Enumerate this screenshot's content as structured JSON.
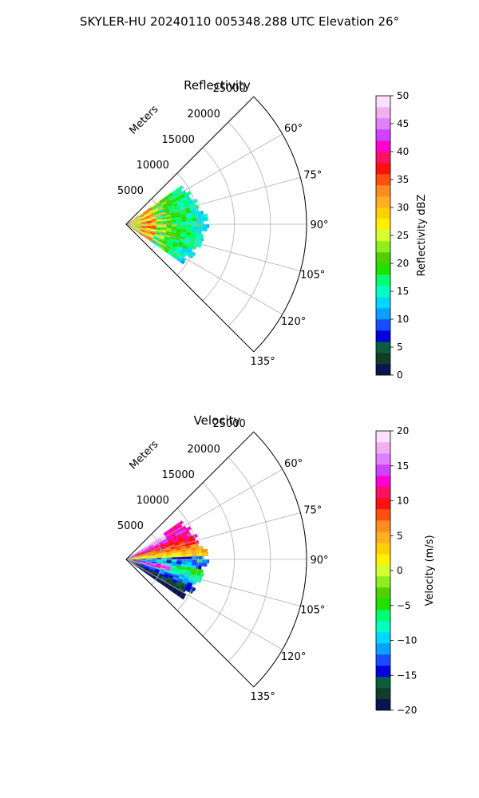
{
  "figure": {
    "suptitle": "SKYLER-HU  20240110  005348.288 UTC Elevation 26°"
  },
  "chart_data": [
    {
      "type": "heatmap",
      "projection": "polar-sector",
      "title": "Reflectivity",
      "radial_label": "Meters",
      "radial_ticks": [
        5000,
        10000,
        15000,
        20000,
        25000
      ],
      "radial_tick_labels": [
        "5000",
        "10000",
        "15000",
        "20000",
        "25000"
      ],
      "r_max": 25000,
      "azimuth_range_deg": [
        45,
        135
      ],
      "azimuth_ticks_deg": [
        60,
        75,
        90,
        105,
        120,
        135
      ],
      "azimuth_tick_labels": [
        "60°",
        "75°",
        "90°",
        "105°",
        "120°",
        "135°"
      ],
      "grid": true,
      "data_extent_m": 11000,
      "data_azimuth_range_deg": [
        55,
        125
      ],
      "colorbar": {
        "label": "Reflectivity dBZ",
        "vmin": 0,
        "vmax": 50,
        "ticks": [
          0,
          5,
          10,
          15,
          20,
          25,
          30,
          35,
          40,
          45,
          50
        ],
        "tick_labels": [
          "0",
          "5",
          "10",
          "15",
          "20",
          "25",
          "30",
          "35",
          "40",
          "45",
          "50"
        ],
        "colors": [
          "#0a1450",
          "#113c28",
          "#0c5c40",
          "#0000dd",
          "#1a4cff",
          "#0aa0ff",
          "#00d8ff",
          "#00ffc0",
          "#00ff70",
          "#20e000",
          "#50d000",
          "#90ee20",
          "#d4ff30",
          "#fff000",
          "#ffd000",
          "#ffb020",
          "#ff8c20",
          "#ff5010",
          "#ff1010",
          "#ff1060",
          "#ff00d0",
          "#cc44ff",
          "#e080ff",
          "#f0b0f0",
          "#fbe0fb"
        ]
      }
    },
    {
      "type": "heatmap",
      "projection": "polar-sector",
      "title": "Velocity",
      "radial_label": "Meters",
      "radial_ticks": [
        5000,
        10000,
        15000,
        20000,
        25000
      ],
      "radial_tick_labels": [
        "5000",
        "10000",
        "15000",
        "20000",
        "25000"
      ],
      "r_max": 25000,
      "azimuth_range_deg": [
        45,
        135
      ],
      "azimuth_ticks_deg": [
        60,
        75,
        90,
        105,
        120,
        135
      ],
      "azimuth_tick_labels": [
        "60°",
        "75°",
        "90°",
        "105°",
        "120°",
        "135°"
      ],
      "grid": true,
      "data_extent_m": 11000,
      "data_azimuth_range_deg": [
        55,
        125
      ],
      "colorbar": {
        "label": "Velocity (m/s)",
        "vmin": -20,
        "vmax": 20,
        "ticks": [
          -20,
          -15,
          -10,
          -5,
          0,
          5,
          10,
          15,
          20
        ],
        "tick_labels": [
          "−20",
          "−15",
          "−10",
          "−5",
          "0",
          "5",
          "10",
          "15",
          "20"
        ],
        "colors": [
          "#0a1450",
          "#113c28",
          "#0c5c40",
          "#0000dd",
          "#1a4cff",
          "#0aa0ff",
          "#00d8ff",
          "#00ffc0",
          "#00ff70",
          "#20e000",
          "#50d000",
          "#90ee20",
          "#d4ff30",
          "#fff000",
          "#ffd000",
          "#ffb020",
          "#ff8c20",
          "#ff5010",
          "#ff1010",
          "#ff1060",
          "#ff00d0",
          "#cc44ff",
          "#e080ff",
          "#f0b0f0",
          "#fbe0fb"
        ]
      }
    }
  ]
}
